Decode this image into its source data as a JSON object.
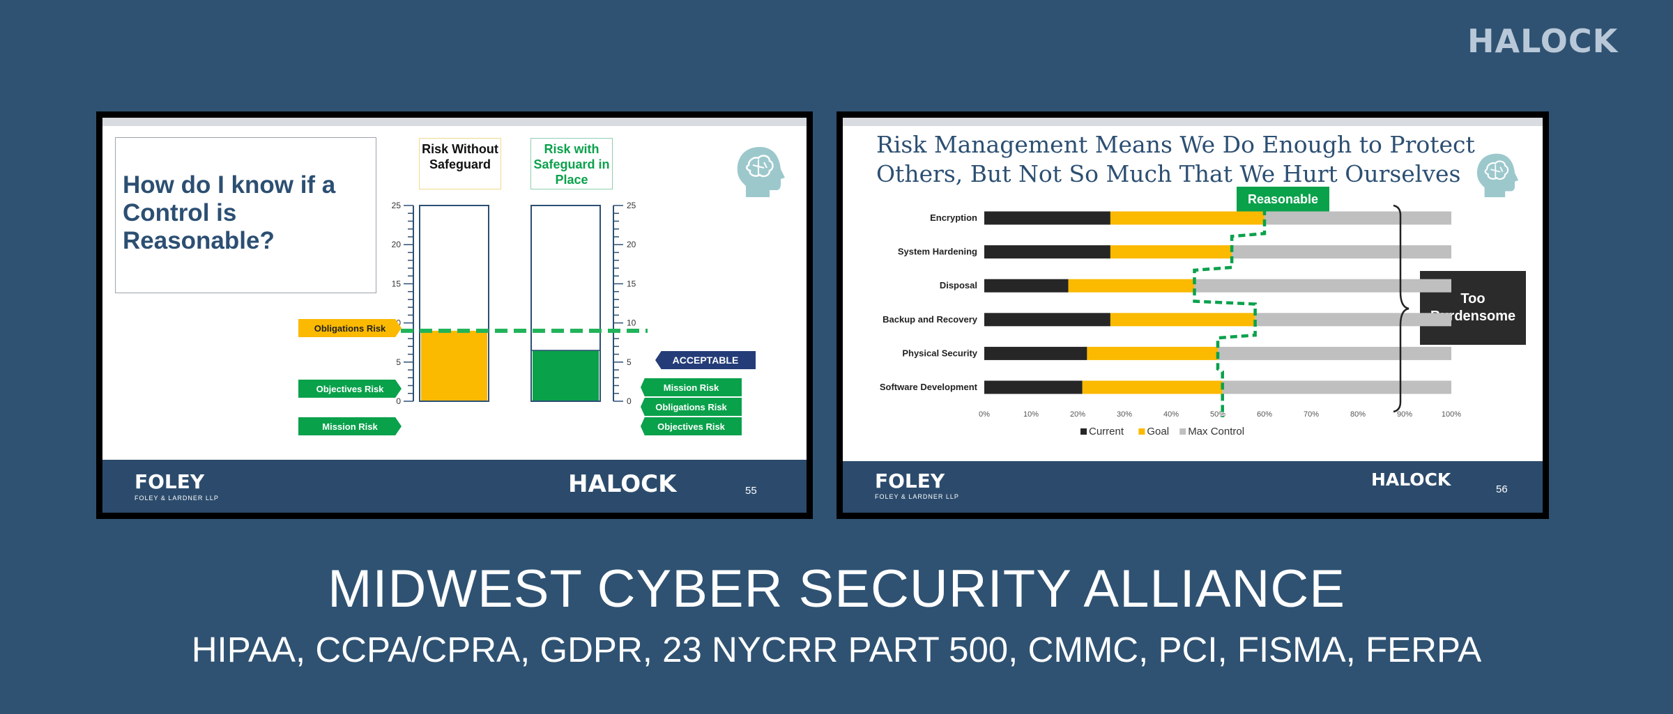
{
  "header": {
    "brand": "HALOCK"
  },
  "slide55": {
    "title": "How do I know if a Control is Reasonable?",
    "col1_label": "Risk Without Safeguard",
    "col2_label": "Risk with Safeguard in Place",
    "scale_ticks": [
      "25",
      "20",
      "15",
      "10",
      "5",
      "0"
    ],
    "left_tags": [
      "Obligations Risk",
      "Objectives Risk",
      "Mission Risk"
    ],
    "acceptable_label": "ACCEPTABLE",
    "right_tags": [
      "Mission Risk",
      "Obligations Risk",
      "Objectives Risk"
    ],
    "acceptable_level": 9,
    "without_level": 9,
    "with_level": 6.5,
    "scale_max": 25,
    "footer_left": "FOLEY",
    "footer_left_sub": "FOLEY & LARDNER LLP",
    "footer_right": "HALOCK",
    "page_number": "55",
    "colors": {
      "without": "#fbb900",
      "with": "#0aa14b",
      "accept": "#21b35a",
      "navy": "#243d78"
    }
  },
  "slide56": {
    "title_line1": "Risk Management Means We Do Enough to Protect",
    "title_line2": "Others, But Not So Much That We Hurt Ourselves",
    "reasonable_label": "Reasonable",
    "burdensome_label": "Too Burdensome",
    "footer_left": "FOLEY",
    "footer_left_sub": "FOLEY & LARDNER LLP",
    "footer_right": "HALOCK",
    "page_number": "56"
  },
  "chart_data": {
    "type": "bar",
    "orientation": "horizontal-stacked",
    "categories": [
      "Encryption",
      "System Hardening",
      "Disposal",
      "Backup and Recovery",
      "Physical Security",
      "Software Development"
    ],
    "series": [
      {
        "name": "Current",
        "values": [
          27,
          27,
          18,
          27,
          22,
          21
        ],
        "color": "#262626"
      },
      {
        "name": "Goal",
        "values": [
          33,
          26,
          27,
          31,
          28,
          30
        ],
        "color": "#fbb900"
      },
      {
        "name": "Max Control",
        "values": [
          40,
          47,
          55,
          42,
          50,
          49
        ],
        "color": "#bfbfbf"
      }
    ],
    "x_ticks": [
      "0%",
      "10%",
      "20%",
      "30%",
      "40%",
      "50%",
      "60%",
      "70%",
      "80%",
      "90%",
      "100%"
    ],
    "xlim": [
      0,
      100
    ],
    "legend_position": "bottom"
  },
  "bottom": {
    "title": "MIDWEST CYBER SECURITY ALLIANCE",
    "subtitle": "HIPAA, CCPA/CPRA, GDPR, 23 NYCRR PART 500, CMMC, PCI, FISMA, FERPA"
  }
}
